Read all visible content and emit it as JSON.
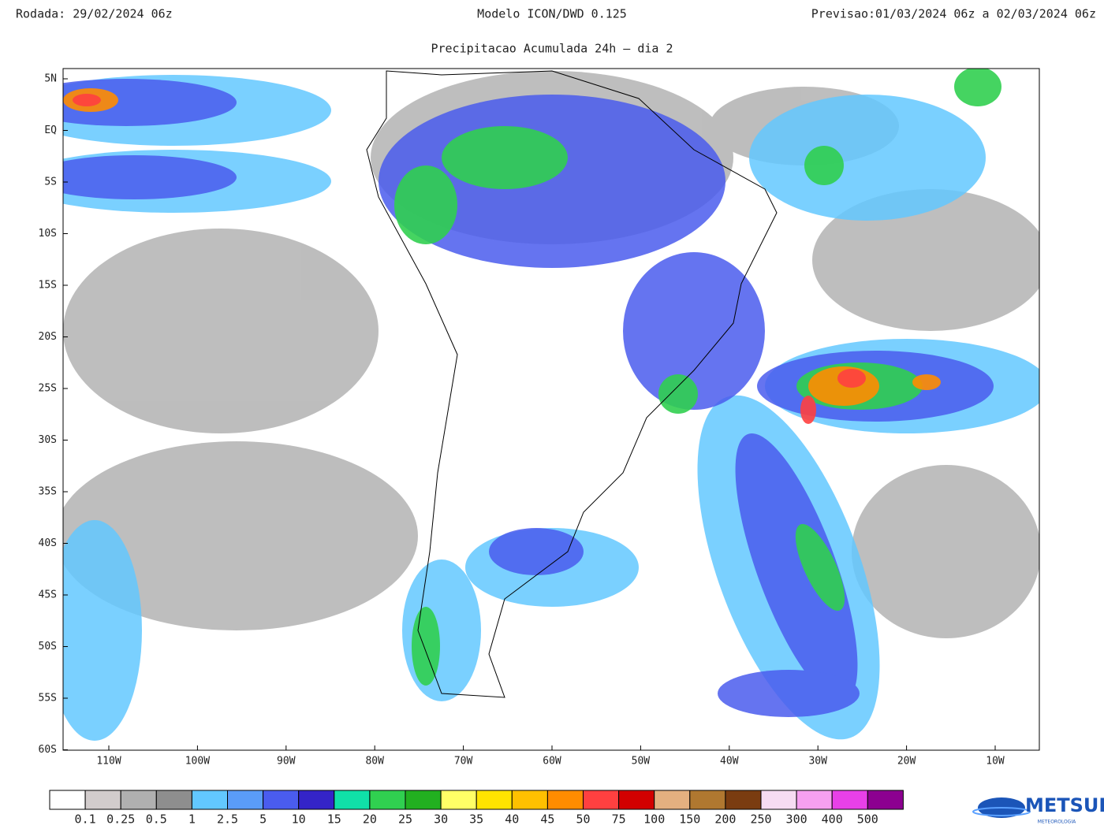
{
  "header": {
    "run": "Rodada: 29/02/2024 06z",
    "model": "Modelo ICON/DWD 0.125",
    "forecast": "Previsao:01/03/2024 06z a 02/03/2024 06z",
    "subtitle": "Precipitacao Acumulada 24h – dia 2"
  },
  "map": {
    "lat_labels": [
      "5N",
      "EQ",
      "5S",
      "10S",
      "15S",
      "20S",
      "25S",
      "30S",
      "35S",
      "40S",
      "45S",
      "50S",
      "55S",
      "60S"
    ],
    "lon_labels": [
      "110W",
      "100W",
      "90W",
      "80W",
      "70W",
      "60W",
      "50W",
      "40W",
      "30W",
      "20W",
      "10W"
    ]
  },
  "colorbar": {
    "colors": [
      "#ffffff",
      "#d2cccc",
      "#b0b0b0",
      "#8e8e8e",
      "#62c8ff",
      "#5a9cf8",
      "#4a5cee",
      "#3424c8",
      "#10e0a8",
      "#30d050",
      "#22b020",
      "#ffff66",
      "#ffe400",
      "#ffc000",
      "#ff8c00",
      "#ff4040",
      "#d20000",
      "#e4b080",
      "#b07830",
      "#7a3c10",
      "#f6dcf2",
      "#f6a0f0",
      "#e840e8",
      "#8c0090"
    ],
    "labels": [
      "0.1",
      "0.25",
      "0.5",
      "1",
      "2.5",
      "5",
      "10",
      "15",
      "20",
      "25",
      "30",
      "35",
      "40",
      "45",
      "50",
      "75",
      "100",
      "150",
      "200",
      "250",
      "300",
      "400",
      "500"
    ]
  },
  "logo": {
    "name": "METSUL",
    "tagline": "METEOROLOGIA"
  }
}
